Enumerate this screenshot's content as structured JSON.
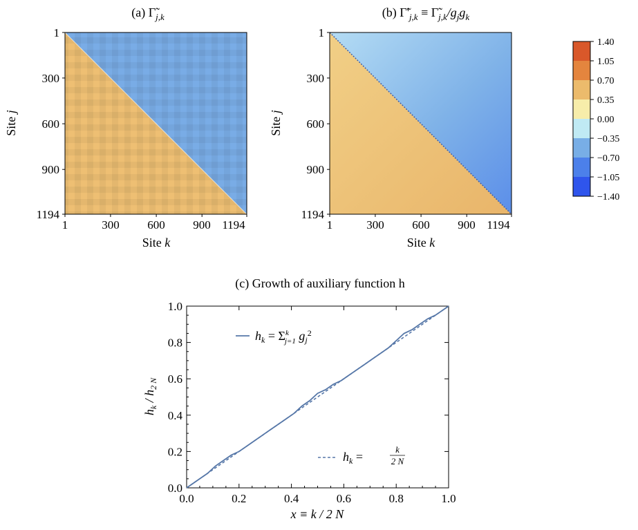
{
  "chart_data": [
    {
      "type": "heatmap",
      "title": "(a)  Γ̃",
      "title_sub": "j,k",
      "xlabel": "Site",
      "xlabel_var": "k",
      "ylabel": "Site",
      "ylabel_var": "j",
      "xticks": [
        "1",
        "300",
        "600",
        "900",
        "1194"
      ],
      "yticks": [
        "1",
        "300",
        "600",
        "900",
        "1194"
      ],
      "xlim": [
        1,
        1194
      ],
      "ylim": [
        1,
        1194
      ],
      "y_inverted": true,
      "upper_triangle_mean": -0.62,
      "lower_triangle_mean": 0.55,
      "pattern": "checkered texture"
    },
    {
      "type": "heatmap",
      "title": "(b)  Γ̃'",
      "title_sub": "j,k",
      "title_rest": " ≡ Γ̃",
      "title_sub2": "j,k",
      "title_end": "/g",
      "title_sub3": "j",
      "title_g2": "g",
      "title_sub4": "k",
      "xlabel": "Site",
      "xlabel_var": "k",
      "ylabel": "Site",
      "ylabel_var": "j",
      "xticks": [
        "1",
        "300",
        "600",
        "900",
        "1194"
      ],
      "yticks": [
        "1",
        "300",
        "600",
        "900",
        "1194"
      ],
      "xlim": [
        1,
        1194
      ],
      "ylim": [
        1,
        1194
      ],
      "y_inverted": true,
      "upper_triangle_mean": -0.55,
      "lower_triangle_mean": 0.5,
      "pattern": "smooth"
    },
    {
      "type": "colorbar",
      "levels": [
        "1.40",
        "1.05",
        "0.70",
        "0.35",
        "0.00",
        "−0.35",
        "−0.70",
        "−1.05",
        "−1.40"
      ],
      "colors": [
        "#d9582a",
        "#e4853e",
        "#ecbb6c",
        "#f7edaa",
        "#c0eaf4",
        "#78aee6",
        "#4c80ea",
        "#2f55ec"
      ]
    },
    {
      "type": "line",
      "title": "(c)  Growth of auxiliary function h",
      "xlabel": "x ≡ k / 2 N",
      "ylabel": "h_k / h_2N",
      "xlim": [
        0,
        1
      ],
      "ylim": [
        0,
        1
      ],
      "xticks": [
        "0.0",
        "0.2",
        "0.4",
        "0.6",
        "0.8",
        "1.0"
      ],
      "yticks": [
        "0.0",
        "0.2",
        "0.4",
        "0.6",
        "0.8",
        "1.0"
      ],
      "grid": false,
      "legend": [
        "h_k = Σ_{j=1}^{k} g_j^2",
        "h_k = k / 2N"
      ],
      "series": [
        {
          "name": "h_k = Σ_{j=1}^{k} g_j^2",
          "style": "solid",
          "color": "#5677a8",
          "x": [
            0,
            0.02,
            0.05,
            0.08,
            0.11,
            0.14,
            0.17,
            0.2,
            0.23,
            0.26,
            0.29,
            0.32,
            0.35,
            0.38,
            0.41,
            0.44,
            0.47,
            0.5,
            0.53,
            0.56,
            0.59,
            0.62,
            0.65,
            0.68,
            0.71,
            0.74,
            0.77,
            0.8,
            0.83,
            0.86,
            0.89,
            0.92,
            0.95,
            0.98,
            1.0
          ],
          "y": [
            0,
            0.02,
            0.05,
            0.08,
            0.12,
            0.15,
            0.18,
            0.2,
            0.23,
            0.26,
            0.29,
            0.32,
            0.35,
            0.38,
            0.41,
            0.45,
            0.48,
            0.52,
            0.54,
            0.57,
            0.59,
            0.62,
            0.65,
            0.68,
            0.71,
            0.74,
            0.77,
            0.81,
            0.85,
            0.87,
            0.9,
            0.93,
            0.95,
            0.98,
            1.0
          ]
        },
        {
          "name": "h_k = k / 2N",
          "style": "dashed",
          "color": "#5677a8",
          "x": [
            0,
            1
          ],
          "y": [
            0,
            1
          ]
        }
      ]
    }
  ]
}
